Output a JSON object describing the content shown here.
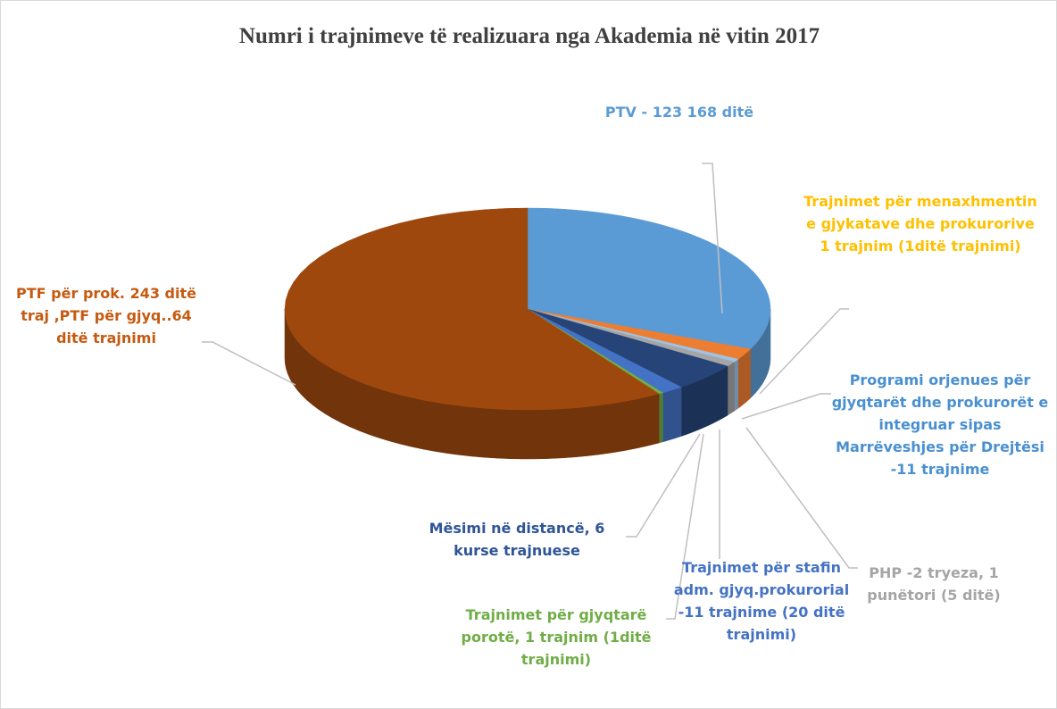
{
  "chart_data": {
    "type": "pie3d",
    "title": "Numri  i  trajnimeve  të  realizuara  nga  Akademia  në  vitin  2017",
    "categories": [
      "PTV - 123  168 ditë",
      "Trajnimet për menaxhmentin e gjykatave dhe prokurorive  1 trajnim (1ditë trajnimi)",
      "Programi orjenues  për gjyqtarët dhe prokurorët  e integruar sipas Marrëveshjes për Drejtësi -11 trajnime",
      "PHP -2 tryeza, 1 punëtori  (5 ditë)",
      "Trajnimet për stafin adm. gjyq.prokurorial -11 trajnime (20 ditë trajnimi)",
      "Mësimi në distancë, 6 kurse trajnuese",
      "Trajnimet për gjyqtarë porotë,  1 trajnim (1ditë trajnimi)",
      "PTF për prok. 243 ditë traj ,PTF për gjyq..64 ditë trajnimi"
    ],
    "values": [
      31.5,
      1.8,
      0.5,
      0.8,
      4.5,
      1.5,
      0.3,
      59.1
    ],
    "colors": [
      "#5b9bd5",
      "#ed7d31",
      "#9dc3e6",
      "#a5a5a5",
      "#264478",
      "#4472c4",
      "#70ad47",
      "#9e480e"
    ],
    "label_colors": [
      "#5b9bd5",
      "#ffc000",
      "#4a90d0",
      "#a5a5a5",
      "#4472c4",
      "#2f5597",
      "#70ad47",
      "#c55a11"
    ]
  }
}
